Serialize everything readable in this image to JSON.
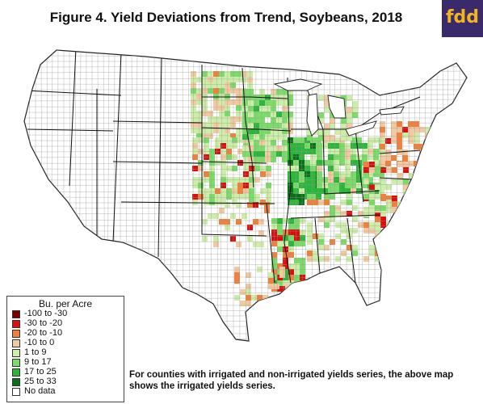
{
  "title": "Figure 4.  Yield Deviations from Trend, Soybeans, 2018",
  "logo": {
    "text": "fdd",
    "icon": "fdd-logo",
    "background": "#3b2a6b",
    "color": "#f2b51c"
  },
  "legend": {
    "title": "Bu. per Acre",
    "items": [
      {
        "label": "-100 to -30",
        "color": "#7a0000"
      },
      {
        "label": "-30 to -20",
        "color": "#d90f0f"
      },
      {
        "label": "-20 to -10",
        "color": "#f0803a"
      },
      {
        "label": "-10 to 0",
        "color": "#f3c9a1"
      },
      {
        "label": "1 to 9",
        "color": "#cdeea9"
      },
      {
        "label": "9 to 17",
        "color": "#7bdc6a"
      },
      {
        "label": "17 to 25",
        "color": "#2bb53a"
      },
      {
        "label": "25 to 33",
        "color": "#0b6e1a"
      },
      {
        "label": "No data",
        "color": "#ffffff"
      }
    ]
  },
  "note": "For counties with irrigated and non-irrigated yields series, the above map shows the irrigated yields series."
}
